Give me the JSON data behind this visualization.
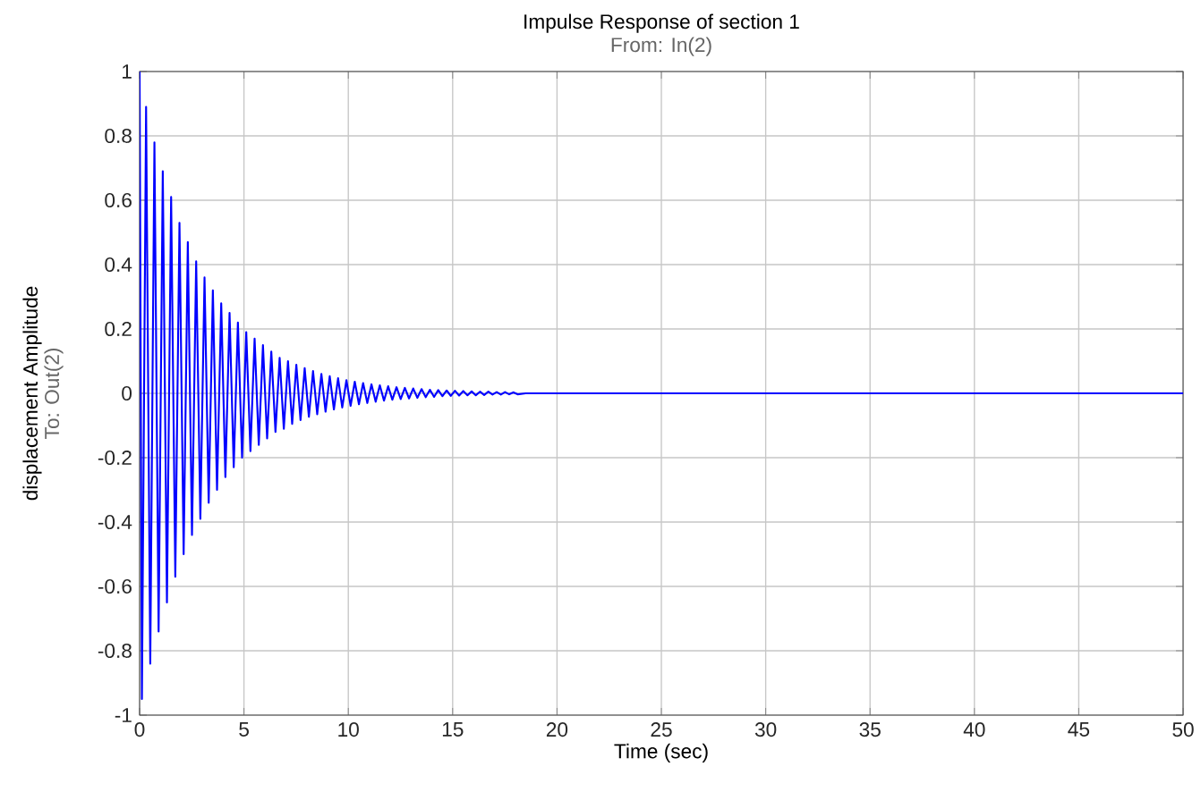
{
  "chart_data": {
    "type": "line",
    "title": "Impulse Response of section 1",
    "subtitle": "From: In(2)",
    "xlabel": "Time (sec)",
    "ylabel": "displacement Amplitude",
    "annotations": [
      "To: Out(2)"
    ],
    "x": [
      0,
      0.11,
      0.31,
      0.51,
      0.71,
      0.91,
      1.11,
      1.31,
      1.51,
      1.71,
      1.91,
      2.11,
      2.31,
      2.51,
      2.71,
      2.91,
      3.11,
      3.31,
      3.51,
      3.71,
      3.91,
      4.11,
      4.31,
      4.51,
      4.71,
      4.91,
      5.11,
      5.31,
      5.51,
      5.71,
      5.91,
      6.11,
      6.31,
      6.51,
      6.71,
      6.91,
      7.11,
      7.31,
      7.51,
      7.71,
      7.91,
      8.11,
      8.31,
      8.51,
      8.71,
      8.91,
      9.11,
      9.31,
      9.51,
      9.71,
      9.91,
      10.11,
      10.31,
      10.51,
      10.71,
      10.91,
      11.11,
      11.31,
      11.51,
      11.71,
      11.91,
      12.11,
      12.31,
      12.51,
      12.71,
      12.91,
      13.11,
      13.31,
      13.51,
      13.71,
      13.91,
      14.11,
      14.31,
      14.51,
      14.71,
      14.91,
      15.11,
      15.31,
      15.51,
      15.71,
      15.91,
      16.11,
      16.31,
      16.51,
      16.71,
      16.91,
      17.11,
      17.31,
      17.51,
      17.71,
      17.91,
      18.11,
      18.5,
      50
    ],
    "values": [
      1,
      -0.95,
      0.89,
      -0.84,
      0.78,
      -0.74,
      0.69,
      -0.65,
      0.61,
      -0.57,
      0.53,
      -0.5,
      0.47,
      -0.44,
      0.41,
      -0.39,
      0.36,
      -0.34,
      0.32,
      -0.3,
      0.28,
      -0.26,
      0.25,
      -0.23,
      0.22,
      -0.2,
      0.19,
      -0.18,
      0.17,
      -0.16,
      0.15,
      -0.14,
      0.13,
      -0.12,
      0.11,
      -0.11,
      0.1,
      -0.095,
      0.089,
      -0.083,
      0.078,
      -0.073,
      0.069,
      -0.065,
      0.06,
      -0.057,
      0.053,
      -0.05,
      0.047,
      -0.044,
      0.041,
      -0.039,
      0.036,
      -0.034,
      0.032,
      -0.03,
      0.028,
      -0.026,
      0.025,
      -0.023,
      0.022,
      -0.02,
      0.019,
      -0.018,
      0.017,
      -0.016,
      0.015,
      -0.014,
      0.013,
      -0.012,
      0.011,
      -0.011,
      0.01,
      -0.009,
      0.009,
      -0.008,
      0.008,
      -0.007,
      0.007,
      -0.006,
      0.006,
      -0.006,
      0.005,
      -0.005,
      0.005,
      -0.004,
      0.004,
      -0.004,
      0.004,
      -0.003,
      0.003,
      -0.003,
      0,
      0
    ],
    "color": "#0000ff",
    "line_style": "solid",
    "marker": "none",
    "grid": true,
    "xlim": [
      0,
      50
    ],
    "xticks": [
      0,
      5,
      10,
      15,
      20,
      25,
      30,
      35,
      40,
      45,
      50
    ],
    "ylim": [
      -1,
      1
    ],
    "yticks": [
      -1,
      -0.8,
      -0.6,
      -0.4,
      -0.2,
      0,
      0.2,
      0.4,
      0.6,
      0.8,
      1
    ]
  }
}
